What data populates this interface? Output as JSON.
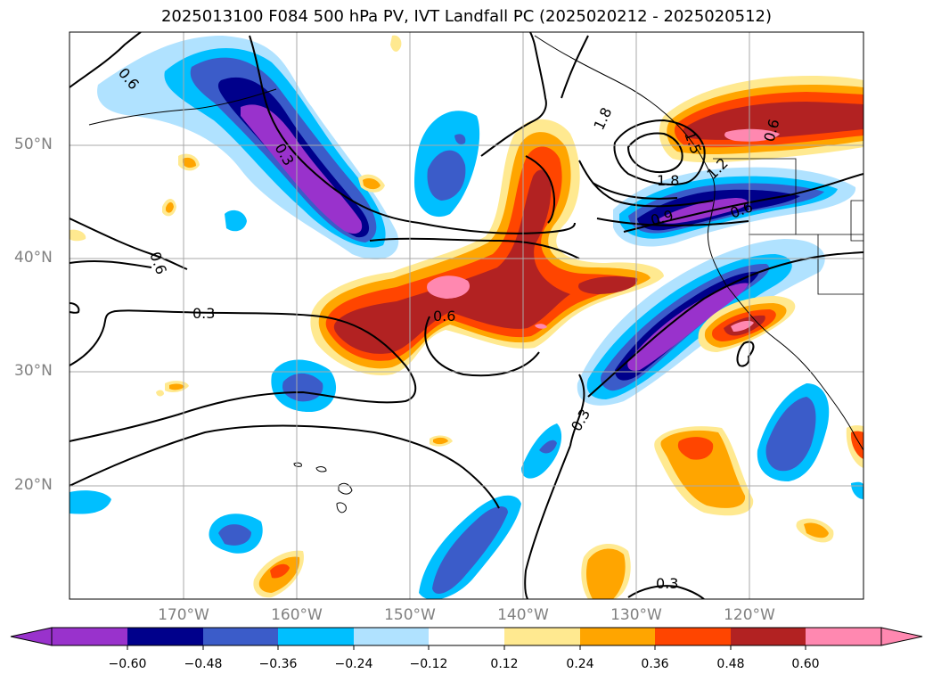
{
  "title": "2025013100 F084 500 hPa PV, IVT Landfall PC (2025020212 - 2025020512)",
  "longitude_labels": [
    "170°W",
    "160°W",
    "150°W",
    "140°W",
    "130°W",
    "120°W"
  ],
  "latitude_labels": [
    "50°N",
    "40°N",
    "30°N",
    "20°N"
  ],
  "contour_labels": [
    "0.6",
    "0.3",
    "0.6",
    "0.3",
    "0.6",
    "1.8",
    "1.5",
    "1.2",
    "1.8",
    "0.9",
    "0.6",
    "0.3",
    "0.3",
    "0.6"
  ],
  "colorbar": {
    "tick_labels": [
      "−0.60",
      "−0.48",
      "−0.36",
      "−0.24",
      "−0.12",
      "0.12",
      "0.24",
      "0.36",
      "0.48",
      "0.60"
    ],
    "colors": [
      "#9932cc",
      "#00008b",
      "#3b5cc9",
      "#00bfff",
      "#b0e2ff",
      "#ffffff",
      "#ffe990",
      "#ffa500",
      "#ff4500",
      "#b22222",
      "#ff88b0",
      "#ff88b0"
    ]
  },
  "colors": {
    "grid": "#a9a9a9",
    "contour": "#000000",
    "tick_label": "#808080"
  }
}
